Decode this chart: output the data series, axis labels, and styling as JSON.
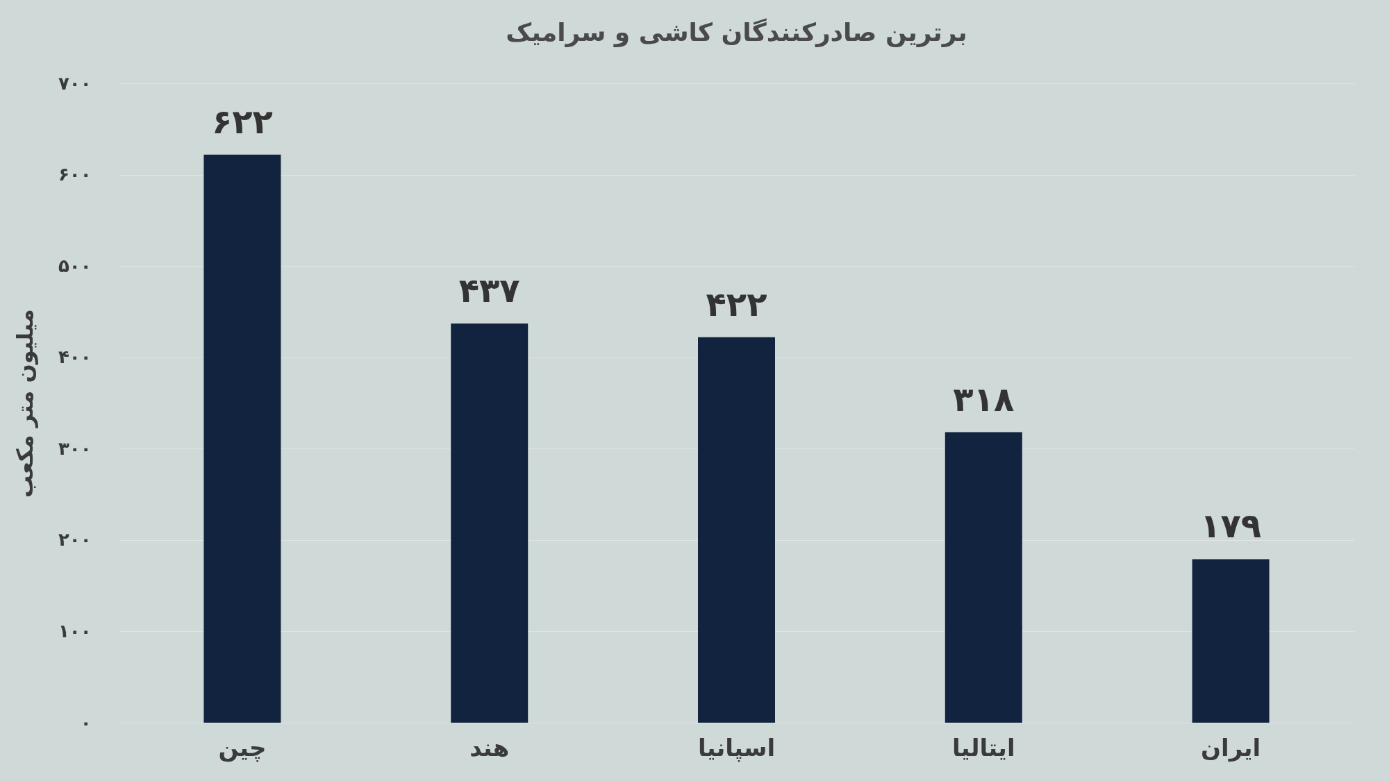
{
  "chart_data": {
    "type": "bar",
    "title": "برترین صادرکنندگان کاشی و سرامیک",
    "ylabel": "میلیون متر مکعب",
    "categories": [
      "چین",
      "هند",
      "اسپانیا",
      "ایتالیا",
      "ایران"
    ],
    "values": [
      622,
      437,
      422,
      318,
      179
    ],
    "value_labels": [
      "۶۲۲",
      "۴۳۷",
      "۴۲۲",
      "۳۱۸",
      "۱۷۹"
    ],
    "color": "#12233f",
    "ylim": [
      0,
      700
    ],
    "yticks": [
      {
        "value": 0,
        "label": "۰"
      },
      {
        "value": 100,
        "label": "۱۰۰"
      },
      {
        "value": 200,
        "label": "۲۰۰"
      },
      {
        "value": 300,
        "label": "۳۰۰"
      },
      {
        "value": 400,
        "label": "۴۰۰"
      },
      {
        "value": 500,
        "label": "۵۰۰"
      },
      {
        "value": 600,
        "label": "۶۰۰"
      },
      {
        "value": 700,
        "label": "۷۰۰"
      }
    ],
    "grid": "y"
  }
}
